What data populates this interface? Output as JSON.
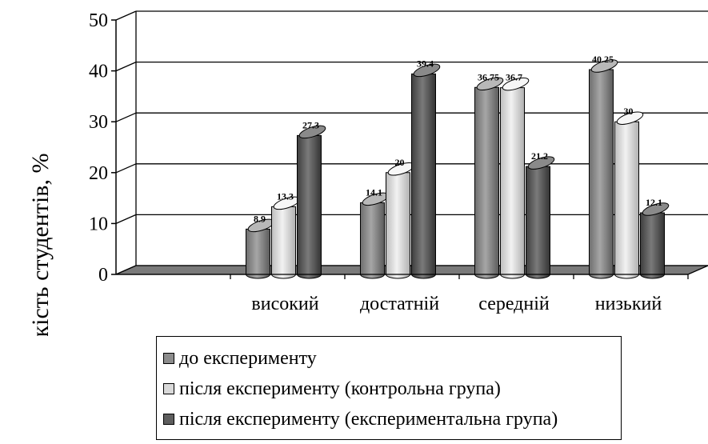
{
  "chart_data": {
    "type": "bar",
    "ylabel": "Кількість студентів, %",
    "ylim": [
      0,
      50
    ],
    "yticks": [
      "0",
      "10",
      "20",
      "30",
      "40",
      "50"
    ],
    "grid": true,
    "legend_position": "bottom",
    "categories": [
      "високий",
      "достатній",
      "середній",
      "низький"
    ],
    "series": [
      {
        "name": "до експерименту",
        "color": "#8c8c8c",
        "values": [
          8.9,
          14.1,
          36.75,
          40.25
        ],
        "labels": [
          "8.9",
          "14.1",
          "36.75",
          "40.25"
        ]
      },
      {
        "name": "після експерименту (контрольна група)",
        "color": "#d9d9d9",
        "values": [
          13.3,
          20,
          36.7,
          30
        ],
        "labels": [
          "13.3",
          "20",
          "36.7",
          "30"
        ]
      },
      {
        "name": "після експерименту (експериментальна група)",
        "color": "#5e5e5e",
        "values": [
          27.3,
          39.4,
          21.2,
          12.1
        ],
        "labels": [
          "27.3",
          "39.4",
          "21.2",
          "12.1"
        ]
      }
    ]
  }
}
